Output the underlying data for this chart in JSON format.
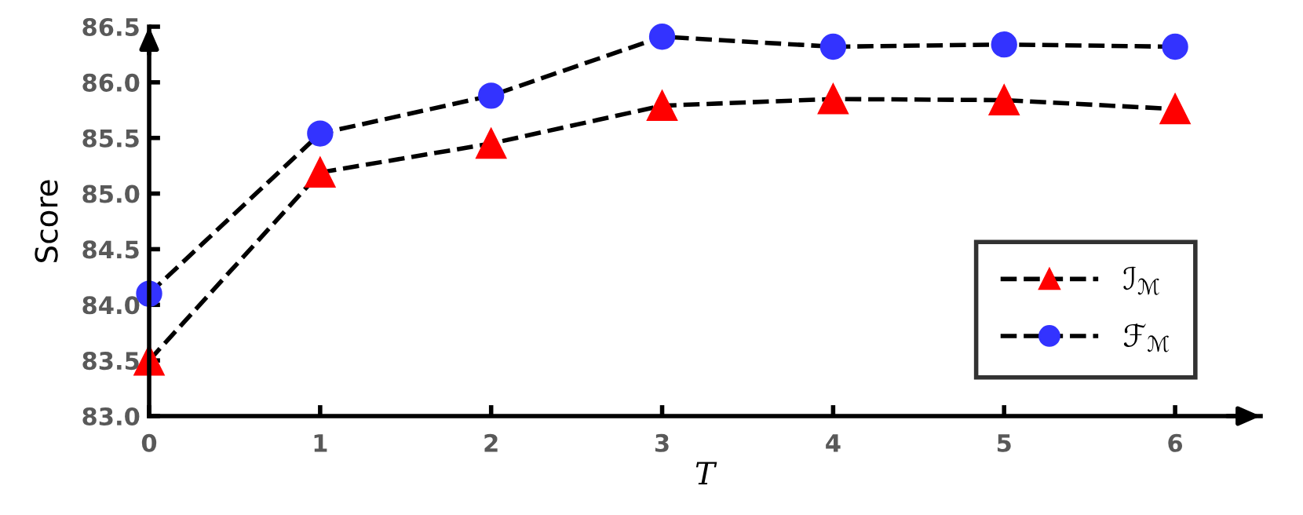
{
  "chart_data": {
    "type": "line",
    "xlabel": "T",
    "ylabel": "Score",
    "x": [
      0,
      1,
      2,
      3,
      4,
      5,
      6
    ],
    "series": [
      {
        "name": "ℐ$_{ℳ}$",
        "color": "#ff0000",
        "marker": "triangle",
        "values": [
          83.5,
          85.19,
          85.45,
          85.79,
          85.85,
          85.84,
          85.76
        ]
      },
      {
        "name": "ℱ$_{ℳ}$",
        "color": "#3333ff",
        "marker": "circle",
        "values": [
          84.1,
          85.54,
          85.88,
          86.41,
          86.32,
          86.34,
          86.32
        ]
      }
    ],
    "xlim": [
      0,
      6.5
    ],
    "xticks": [
      0,
      1,
      2,
      3,
      4,
      5,
      6
    ],
    "ylim": [
      83.0,
      86.5
    ],
    "yticks": [
      {
        "value": 83.0,
        "label": "83.0"
      },
      {
        "value": 83.5,
        "label": "83.5"
      },
      {
        "value": 84.0,
        "label": "84.0"
      },
      {
        "value": 84.5,
        "label": "84.5"
      },
      {
        "value": 85.0,
        "label": "85.0"
      },
      {
        "value": 85.5,
        "label": "85.5"
      },
      {
        "value": 86.0,
        "label": "86.0"
      },
      {
        "value": 86.5,
        "label": "86.5"
      }
    ],
    "line_style": "dashed",
    "grid": false,
    "legend": "bottom right"
  }
}
